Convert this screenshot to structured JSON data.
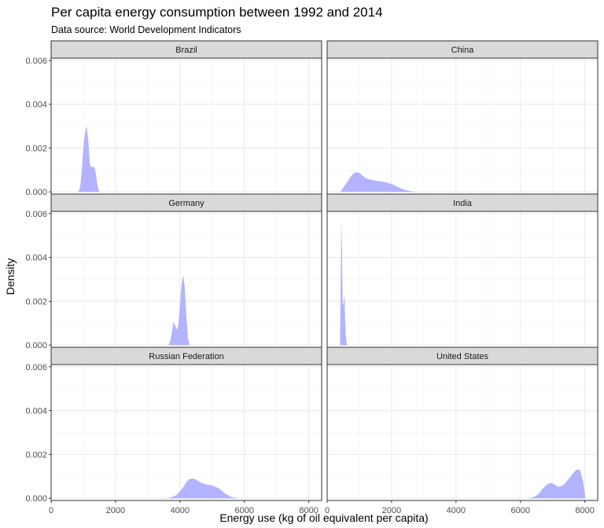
{
  "title": "Per capita energy consumption between 1992 and 2014",
  "subtitle": "Data source: World Development Indicators",
  "chart_data": {
    "type": "area",
    "chart_kind": "density-facets",
    "xlabel": "Energy use (kg of oil equivalent per capita)",
    "ylabel": "Density",
    "xlim": [
      0,
      8400
    ],
    "ylim": [
      -0.0001,
      0.0061
    ],
    "x_ticks": [
      0,
      2000,
      4000,
      6000,
      8000
    ],
    "x_tick_labels": [
      "0",
      "2000",
      "4000",
      "6000",
      "8000"
    ],
    "y_ticks": [
      0,
      0.002,
      0.004,
      0.006
    ],
    "y_tick_labels": [
      "0.000",
      "0.002",
      "0.004",
      "0.006"
    ],
    "grid": true,
    "fill_color": "#B3B3FF",
    "strip_color": "#D9D9D9",
    "facets": [
      {
        "name": "Brazil",
        "x": [
          840,
          900,
          950,
          1000,
          1050,
          1100,
          1150,
          1200,
          1250,
          1300,
          1350,
          1400,
          1450,
          1500
        ],
        "y": [
          0,
          0.0002,
          0.0009,
          0.002,
          0.0027,
          0.003,
          0.0024,
          0.0013,
          0.00112,
          0.00115,
          0.00112,
          0.0007,
          0.0002,
          0
        ]
      },
      {
        "name": "China",
        "x": [
          420,
          500,
          600,
          700,
          800,
          900,
          1000,
          1100,
          1200,
          1400,
          1600,
          1800,
          2000,
          2200,
          2400,
          2600,
          2800
        ],
        "y": [
          0,
          0.0002,
          0.0004,
          0.00063,
          0.00082,
          0.0009,
          0.00086,
          0.00074,
          0.00062,
          0.00054,
          0.00049,
          0.00044,
          0.00036,
          0.00022,
          0.0001,
          3e-05,
          0
        ]
      },
      {
        "name": "Germany",
        "x": [
          3650,
          3700,
          3750,
          3800,
          3850,
          3900,
          3950,
          4000,
          4050,
          4100,
          4150,
          4200,
          4250,
          4300
        ],
        "y": [
          0,
          0.0002,
          0.0006,
          0.00105,
          0.0009,
          0.0007,
          0.0009,
          0.0018,
          0.0028,
          0.0032,
          0.0026,
          0.0013,
          0.0003,
          0
        ]
      },
      {
        "name": "India",
        "x": [
          400,
          420,
          440,
          460,
          480,
          500,
          520,
          540,
          560,
          580,
          600,
          620
        ],
        "y": [
          0,
          0.003,
          0.0057,
          0.0044,
          0.0019,
          0.0018,
          0.0022,
          0.0021,
          0.0011,
          0.0004,
          0.0001,
          0
        ]
      },
      {
        "name": "Russian Federation",
        "x": [
          3500,
          3700,
          3900,
          4100,
          4200,
          4300,
          4400,
          4500,
          4600,
          4800,
          5000,
          5200,
          5400,
          5600,
          5800
        ],
        "y": [
          0,
          3e-05,
          0.00015,
          0.0005,
          0.00075,
          0.00088,
          0.00091,
          0.00085,
          0.00075,
          0.00064,
          0.00058,
          0.00046,
          0.00022,
          6e-05,
          0
        ]
      },
      {
        "name": "United States",
        "x": [
          6250,
          6400,
          6550,
          6700,
          6850,
          6950,
          7050,
          7150,
          7250,
          7350,
          7450,
          7550,
          7650,
          7750,
          7850,
          7950,
          8020
        ],
        "y": [
          0,
          5e-05,
          0.00018,
          0.00045,
          0.00066,
          0.0007,
          0.00064,
          0.00053,
          0.00054,
          0.00063,
          0.0008,
          0.00098,
          0.00117,
          0.00132,
          0.0013,
          0.00075,
          0
        ]
      }
    ]
  }
}
